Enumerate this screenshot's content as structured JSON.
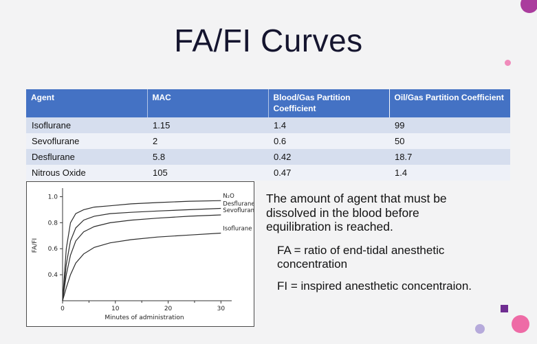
{
  "slide": {
    "title": "FA/FI Curves"
  },
  "table": {
    "headers": [
      "Agent",
      "MAC",
      "Blood/Gas Partition Coefficient",
      "Oil/Gas Partition Coefficient"
    ],
    "rows": [
      [
        "Isoflurane",
        "1.15",
        "1.4",
        "99"
      ],
      [
        "Sevoflurane",
        "2",
        "0.6",
        "50"
      ],
      [
        "Desflurane",
        "5.8",
        "0.42",
        "18.7"
      ],
      [
        "Nitrous Oxide",
        "105",
        "0.47",
        "1.4"
      ]
    ]
  },
  "notes": {
    "main": "The amount of agent that must be dissolved in the blood before equilibration is reached.",
    "fa": "FA = ratio of end-tidal anesthetic concentration",
    "fi": "FI = inspired anesthetic concentraion."
  },
  "chart_data": {
    "type": "line",
    "title": "",
    "xlabel": "Minutes of administration",
    "ylabel": "FA/FI",
    "xlim": [
      0,
      31
    ],
    "ylim": [
      0.2,
      1.05
    ],
    "xticks": [
      0,
      10,
      20,
      30
    ],
    "xticks_minor": [
      5,
      15,
      25
    ],
    "yticks": [
      0.4,
      0.6,
      0.8,
      1.0
    ],
    "grid": false,
    "legend_position": "end-of-line labels",
    "series": [
      {
        "name": "N₂O",
        "x": [
          0,
          0.7,
          1.5,
          2.5,
          4,
          6,
          9,
          13,
          18,
          24,
          30
        ],
        "y": [
          0.2,
          0.6,
          0.8,
          0.87,
          0.9,
          0.92,
          0.93,
          0.945,
          0.955,
          0.965,
          0.97
        ]
      },
      {
        "name": "Desflurane",
        "x": [
          0,
          0.7,
          1.5,
          2.5,
          4,
          6,
          9,
          13,
          18,
          24,
          30
        ],
        "y": [
          0.2,
          0.48,
          0.66,
          0.76,
          0.82,
          0.85,
          0.87,
          0.88,
          0.89,
          0.9,
          0.91
        ]
      },
      {
        "name": "Sevoflurane",
        "x": [
          0,
          0.7,
          1.5,
          2.5,
          4,
          6,
          9,
          13,
          18,
          24,
          30
        ],
        "y": [
          0.2,
          0.4,
          0.55,
          0.66,
          0.73,
          0.77,
          0.8,
          0.82,
          0.835,
          0.85,
          0.86
        ]
      },
      {
        "name": "Isoflurane",
        "x": [
          0,
          0.7,
          1.5,
          2.5,
          4,
          6,
          9,
          13,
          18,
          24,
          30
        ],
        "y": [
          0.2,
          0.3,
          0.4,
          0.49,
          0.56,
          0.61,
          0.645,
          0.67,
          0.69,
          0.705,
          0.72
        ]
      }
    ]
  },
  "colors": {
    "slide_bg": "#f3f3f4",
    "title_color": "#15152f",
    "header_bg": "#4472c4",
    "band_a": "#d6deee",
    "band_b": "#eef1f8",
    "decor_top_circle": "#aa3c9d",
    "decor_side_dot": "#f08bbb",
    "decor_square": "#6f2d91",
    "decor_pink_circle": "#ee6ba6",
    "decor_lavender_circle": "#b6aadb"
  }
}
